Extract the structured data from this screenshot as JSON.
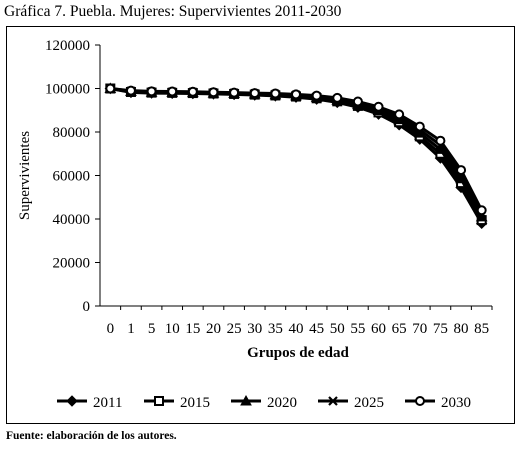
{
  "title": "Gráfica 7. Puebla. Mujeres: Supervivientes 2011-2030",
  "source": "Fuente: elaboración de los autores.",
  "chart_data": {
    "type": "line",
    "title": "Gráfica 7. Puebla. Mujeres: Supervivientes 2011-2030",
    "xlabel": "Grupos de edad",
    "ylabel": "Supervivientes",
    "ylim": [
      0,
      120000
    ],
    "yticks": [
      0,
      20000,
      40000,
      60000,
      80000,
      100000,
      120000
    ],
    "grid": false,
    "legend_position": "bottom",
    "categories": [
      "0",
      "1",
      "5",
      "10",
      "15",
      "20",
      "25",
      "30",
      "35",
      "40",
      "45",
      "50",
      "55",
      "60",
      "65",
      "70",
      "75",
      "80",
      "85"
    ],
    "series": [
      {
        "name": "2011",
        "marker": "diamond",
        "color": "#000000",
        "values": [
          100000,
          98200,
          97900,
          97800,
          97700,
          97500,
          97300,
          97000,
          96600,
          96000,
          95100,
          93600,
          91400,
          88200,
          83300,
          76700,
          68000,
          54500,
          38000
        ]
      },
      {
        "name": "2015",
        "marker": "square",
        "color": "#000000",
        "values": [
          100000,
          98400,
          98100,
          98000,
          97900,
          97700,
          97500,
          97200,
          96800,
          96300,
          95500,
          94100,
          92000,
          89000,
          84500,
          78000,
          70000,
          56500,
          39500
        ]
      },
      {
        "name": "2020",
        "marker": "triangle",
        "color": "#000000",
        "values": [
          100000,
          98600,
          98300,
          98200,
          98100,
          97900,
          97700,
          97500,
          97100,
          96600,
          95900,
          94600,
          92600,
          89900,
          85700,
          79500,
          72000,
          58500,
          41000
        ]
      },
      {
        "name": "2025",
        "marker": "x",
        "color": "#000000",
        "values": [
          100000,
          98800,
          98500,
          98400,
          98300,
          98100,
          97900,
          97700,
          97400,
          97000,
          96300,
          95100,
          93300,
          90800,
          86900,
          81000,
          74000,
          60500,
          42500
        ]
      },
      {
        "name": "2030",
        "marker": "circle",
        "color": "#000000",
        "values": [
          100000,
          99000,
          98700,
          98600,
          98500,
          98300,
          98100,
          97900,
          97700,
          97300,
          96700,
          95700,
          94000,
          91600,
          88100,
          82500,
          76000,
          62500,
          44000
        ]
      }
    ]
  }
}
